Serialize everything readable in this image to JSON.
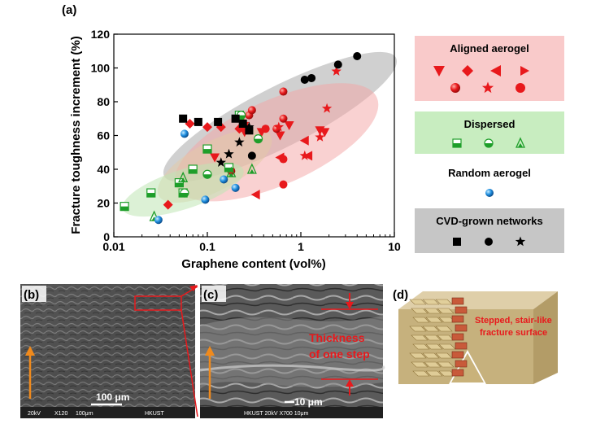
{
  "panel_a": {
    "label": "(a)",
    "chart_data": {
      "type": "scatter",
      "title": "",
      "xlabel": "Graphene content (vol%)",
      "ylabel": "Fracture toughness increment (%)",
      "xscale": "log",
      "xlim": [
        0.01,
        10
      ],
      "ylim": [
        0,
        120
      ],
      "x_ticks": [
        "0.01",
        "0.1",
        "1",
        "10"
      ],
      "y_ticks": [
        "0",
        "20",
        "40",
        "60",
        "80",
        "100",
        "120"
      ],
      "legend_placement": "right",
      "groups": [
        {
          "name": "Aligned aerogel",
          "color": "#e8191c",
          "region_color": "#f4a4a4",
          "series": [
            {
              "marker": "triangle-down",
              "points": [
                [
                  0.12,
                  47
                ],
                [
                  0.25,
                  62
                ],
                [
                  0.38,
                  62
                ],
                [
                  0.6,
                  60
                ],
                [
                  0.75,
                  66
                ],
                [
                  1.6,
                  63
                ],
                [
                  1.8,
                  62
                ]
              ]
            },
            {
              "marker": "diamond",
              "points": [
                [
                  0.038,
                  19
                ],
                [
                  0.065,
                  67
                ],
                [
                  0.1,
                  65
                ],
                [
                  0.14,
                  65
                ],
                [
                  0.22,
                  64
                ],
                [
                  0.25,
                  66
                ]
              ]
            },
            {
              "marker": "triangle-left",
              "points": [
                [
                  0.33,
                  25
                ],
                [
                  0.6,
                  47
                ],
                [
                  1.1,
                  57
                ],
                [
                  1.2,
                  48
                ]
              ]
            },
            {
              "marker": "sphere",
              "points": [
                [
                  0.18,
                  39
                ],
                [
                  0.28,
                  72
                ],
                [
                  0.55,
                  64
                ],
                [
                  0.65,
                  70
                ],
                [
                  0.65,
                  86
                ],
                [
                  0.3,
                  75
                ]
              ]
            },
            {
              "marker": "star",
              "points": [
                [
                  0.25,
                  67
                ],
                [
                  0.58,
                  65
                ],
                [
                  1.1,
                  48
                ],
                [
                  1.6,
                  59
                ],
                [
                  1.9,
                  76
                ],
                [
                  2.4,
                  98
                ]
              ]
            },
            {
              "marker": "filled-circle",
              "points": [
                [
                  0.42,
                  64
                ],
                [
                  0.65,
                  31
                ],
                [
                  0.65,
                  46
                ]
              ]
            }
          ]
        },
        {
          "name": "Dispersed",
          "color": "#1e9e2a",
          "region_color": "#bfe6b5",
          "series": [
            {
              "marker": "half-square",
              "points": [
                [
                  0.013,
                  18
                ],
                [
                  0.025,
                  26
                ],
                [
                  0.05,
                  32
                ],
                [
                  0.055,
                  26
                ],
                [
                  0.07,
                  40
                ],
                [
                  0.1,
                  52
                ],
                [
                  0.17,
                  41
                ],
                [
                  0.22,
                  72
                ]
              ]
            },
            {
              "marker": "half-circle",
              "points": [
                [
                  0.057,
                  26
                ],
                [
                  0.1,
                  37
                ],
                [
                  0.23,
                  72
                ],
                [
                  0.35,
                  58
                ]
              ]
            },
            {
              "marker": "triangle",
              "points": [
                [
                  0.027,
                  12
                ],
                [
                  0.055,
                  35
                ],
                [
                  0.18,
                  38
                ],
                [
                  0.3,
                  40
                ]
              ]
            }
          ]
        },
        {
          "name": "Random aerogel",
          "color": "#1f8fe0",
          "region_color": "#e3c9a6",
          "series": [
            {
              "marker": "sphere",
              "points": [
                [
                  0.03,
                  10
                ],
                [
                  0.057,
                  61
                ],
                [
                  0.095,
                  22
                ],
                [
                  0.15,
                  34
                ],
                [
                  0.2,
                  29
                ]
              ]
            }
          ]
        },
        {
          "name": "CVD-grown networks",
          "color": "#000000",
          "region_color": "#a9a9a9",
          "series": [
            {
              "marker": "square",
              "points": [
                [
                  0.055,
                  70
                ],
                [
                  0.08,
                  68
                ],
                [
                  0.13,
                  68
                ],
                [
                  0.2,
                  70
                ],
                [
                  0.24,
                  67
                ],
                [
                  0.28,
                  63
                ]
              ]
            },
            {
              "marker": "circle",
              "points": [
                [
                  0.3,
                  48
                ],
                [
                  1.1,
                  93
                ],
                [
                  1.3,
                  94
                ],
                [
                  2.5,
                  102
                ],
                [
                  4.0,
                  107
                ]
              ]
            },
            {
              "marker": "star",
              "points": [
                [
                  0.14,
                  44
                ],
                [
                  0.17,
                  49
                ],
                [
                  0.22,
                  56
                ],
                [
                  0.28,
                  65
                ]
              ]
            }
          ]
        }
      ]
    },
    "legend": {
      "aligned_title": "Aligned aerogel",
      "dispersed_title": "Dispersed",
      "random_title": "Random aerogel",
      "cvd_title": "CVD-grown networks"
    }
  },
  "panel_b": {
    "label": "(b)",
    "scale_bar": "100 μm",
    "footer_kv": "20kV",
    "footer_mag": "X120",
    "footer_bar": "100μm",
    "footer_inst": "HKUST"
  },
  "panel_c": {
    "label": "(c)",
    "annotation_line1": "Thickness",
    "annotation_line2": "of one step",
    "scale_bar": "10 μm",
    "footer": "HKUST   20kV   X700  10μm"
  },
  "panel_d": {
    "label": "(d)",
    "annotation_line1": "Stepped, stair-like",
    "annotation_line2": "fracture surface"
  }
}
